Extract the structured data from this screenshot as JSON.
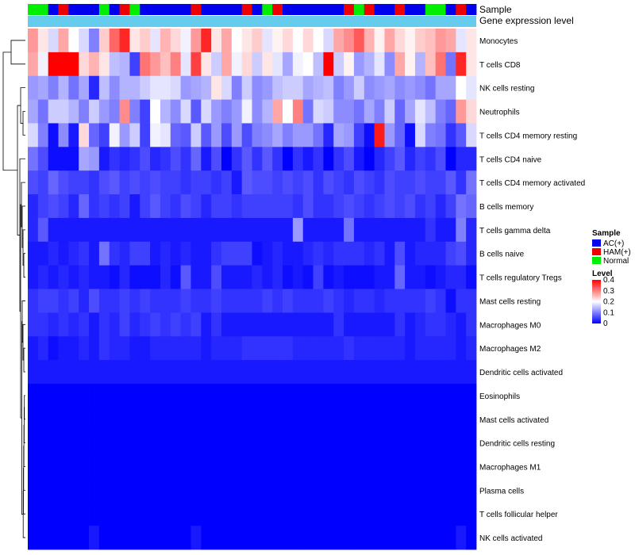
{
  "chart_data": {
    "type": "heatmap",
    "annotation_tracks": [
      "Sample",
      "Gene expression level"
    ],
    "sample_groups": [
      "AC(+)",
      "HAM(+)",
      "Normal"
    ],
    "sample_annotation": [
      2,
      2,
      0,
      1,
      0,
      0,
      0,
      2,
      0,
      1,
      2,
      0,
      0,
      0,
      0,
      0,
      1,
      0,
      0,
      0,
      0,
      1,
      0,
      2,
      1,
      0,
      0,
      0,
      0,
      0,
      0,
      1,
      2,
      1,
      0,
      0,
      1,
      0,
      0,
      2,
      2,
      0,
      1,
      0
    ],
    "row_labels": [
      "Monocytes",
      "T cells CD8",
      "NK cells resting",
      "Neutrophils",
      "T cells CD4 memory resting",
      "T cells CD4 naive",
      "T cells CD4 memory activated",
      "B cells memory",
      "T cells gamma delta",
      "B cells naive",
      "T cells regulatory  Tregs",
      "Mast cells resting",
      "Macrophages M0",
      "Macrophages M2",
      "Dendritic cells activated",
      "Eosinophils",
      "Mast cells activated",
      "Dendritic cells resting",
      "Macrophages M1",
      "Plasma cells",
      "T cells follicular helper",
      "NK cells activated"
    ],
    "n_columns": 44,
    "values": [
      [
        0.28,
        0.22,
        0.17,
        0.27,
        0.2,
        0.17,
        0.1,
        0.24,
        0.32,
        0.37,
        0.22,
        0.24,
        0.18,
        0.26,
        0.23,
        0.19,
        0.28,
        0.37,
        0.22,
        0.27,
        0.2,
        0.22,
        0.24,
        0.18,
        0.21,
        0.23,
        0.2,
        0.23,
        0.2,
        0.17,
        0.27,
        0.29,
        0.33,
        0.26,
        0.21,
        0.27,
        0.23,
        0.21,
        0.24,
        0.25,
        0.28,
        0.27,
        0.18,
        0.22
      ],
      [
        0.27,
        0.19,
        0.4,
        0.4,
        0.4,
        0.23,
        0.26,
        0.22,
        0.15,
        0.14,
        0.05,
        0.31,
        0.28,
        0.25,
        0.3,
        0.18,
        0.35,
        0.22,
        0.16,
        0.27,
        0.19,
        0.23,
        0.16,
        0.22,
        0.18,
        0.13,
        0.19,
        0.2,
        0.15,
        0.4,
        0.16,
        0.21,
        0.12,
        0.14,
        0.18,
        0.11,
        0.27,
        0.21,
        0.14,
        0.25,
        0.31,
        0.09,
        0.37,
        0.22
      ],
      [
        0.12,
        0.13,
        0.1,
        0.14,
        0.09,
        0.13,
        0.03,
        0.15,
        0.11,
        0.14,
        0.14,
        0.16,
        0.18,
        0.18,
        0.17,
        0.12,
        0.13,
        0.14,
        0.22,
        0.17,
        0.1,
        0.16,
        0.11,
        0.12,
        0.15,
        0.16,
        0.16,
        0.13,
        0.14,
        0.15,
        0.1,
        0.12,
        0.16,
        0.11,
        0.12,
        0.13,
        0.11,
        0.12,
        0.11,
        0.09,
        0.13,
        0.13,
        0.2,
        0.18
      ],
      [
        0.13,
        0.09,
        0.16,
        0.16,
        0.14,
        0.1,
        0.16,
        0.12,
        0.1,
        0.29,
        0.1,
        0.05,
        0.2,
        0.14,
        0.11,
        0.17,
        0.07,
        0.17,
        0.12,
        0.1,
        0.12,
        0.19,
        0.11,
        0.14,
        0.27,
        0.2,
        0.3,
        0.09,
        0.17,
        0.16,
        0.11,
        0.11,
        0.09,
        0.13,
        0.1,
        0.16,
        0.08,
        0.13,
        0.18,
        0.15,
        0.1,
        0.08,
        0.28,
        0.23
      ],
      [
        0.17,
        0.1,
        0.01,
        0.11,
        0.02,
        0.23,
        0.08,
        0.05,
        0.19,
        0.12,
        0.16,
        0.05,
        0.19,
        0.18,
        0.08,
        0.07,
        0.16,
        0.07,
        0.12,
        0.06,
        0.12,
        0.06,
        0.1,
        0.11,
        0.13,
        0.1,
        0.12,
        0.12,
        0.09,
        0.03,
        0.13,
        0.12,
        0.05,
        0.01,
        0.38,
        0.12,
        0.08,
        0.01,
        0.17,
        0.1,
        0.09,
        0.04,
        0.07,
        0.17
      ],
      [
        0.09,
        0.06,
        0.01,
        0.01,
        0.01,
        0.13,
        0.12,
        0.02,
        0.04,
        0.03,
        0.04,
        0.06,
        0.03,
        0.04,
        0.06,
        0.04,
        0.08,
        0.02,
        0.06,
        0.0,
        0.04,
        0.07,
        0.04,
        0.07,
        0.04,
        0.0,
        0.04,
        0.02,
        0.04,
        0.0,
        0.04,
        0.06,
        0.02,
        0.0,
        0.03,
        0.05,
        0.07,
        0.03,
        0.05,
        0.04,
        0.06,
        0.0,
        0.03,
        0.03
      ],
      [
        0.06,
        0.05,
        0.08,
        0.06,
        0.05,
        0.05,
        0.04,
        0.06,
        0.07,
        0.05,
        0.06,
        0.05,
        0.06,
        0.05,
        0.05,
        0.04,
        0.05,
        0.05,
        0.04,
        0.05,
        0.02,
        0.07,
        0.06,
        0.06,
        0.05,
        0.06,
        0.05,
        0.06,
        0.04,
        0.06,
        0.05,
        0.04,
        0.06,
        0.05,
        0.04,
        0.06,
        0.05,
        0.05,
        0.06,
        0.05,
        0.05,
        0.07,
        0.04,
        0.09
      ],
      [
        0.03,
        0.05,
        0.06,
        0.05,
        0.03,
        0.08,
        0.04,
        0.05,
        0.04,
        0.05,
        0.02,
        0.05,
        0.07,
        0.05,
        0.04,
        0.06,
        0.05,
        0.03,
        0.05,
        0.05,
        0.04,
        0.05,
        0.05,
        0.05,
        0.05,
        0.05,
        0.04,
        0.06,
        0.04,
        0.04,
        0.05,
        0.06,
        0.05,
        0.04,
        0.05,
        0.06,
        0.05,
        0.06,
        0.04,
        0.05,
        0.03,
        0.05,
        0.09,
        0.08
      ],
      [
        0.03,
        0.07,
        0.02,
        0.02,
        0.02,
        0.02,
        0.02,
        0.02,
        0.02,
        0.02,
        0.02,
        0.02,
        0.02,
        0.02,
        0.02,
        0.02,
        0.02,
        0.02,
        0.02,
        0.02,
        0.02,
        0.02,
        0.02,
        0.02,
        0.02,
        0.02,
        0.12,
        0.02,
        0.02,
        0.02,
        0.02,
        0.09,
        0.02,
        0.02,
        0.02,
        0.02,
        0.02,
        0.02,
        0.02,
        0.04,
        0.02,
        0.02,
        0.1,
        0.03
      ],
      [
        0.02,
        0.02,
        0.03,
        0.02,
        0.03,
        0.04,
        0.02,
        0.09,
        0.04,
        0.03,
        0.05,
        0.05,
        0.02,
        0.03,
        0.02,
        0.03,
        0.02,
        0.02,
        0.04,
        0.05,
        0.05,
        0.05,
        0.01,
        0.02,
        0.03,
        0.02,
        0.02,
        0.03,
        0.04,
        0.03,
        0.04,
        0.04,
        0.04,
        0.03,
        0.04,
        0.02,
        0.06,
        0.02,
        0.03,
        0.03,
        0.03,
        0.05,
        0.06,
        0.03
      ],
      [
        0.02,
        0.03,
        0.02,
        0.03,
        0.02,
        0.03,
        0.02,
        0.02,
        0.01,
        0.03,
        0.01,
        0.01,
        0.01,
        0.03,
        0.01,
        0.07,
        0.02,
        0.02,
        0.06,
        0.02,
        0.02,
        0.02,
        0.03,
        0.02,
        0.03,
        0.01,
        0.02,
        0.01,
        0.05,
        0.01,
        0.02,
        0.01,
        0.01,
        0.01,
        0.02,
        0.02,
        0.08,
        0.02,
        0.02,
        0.01,
        0.02,
        0.03,
        0.03,
        0.01
      ],
      [
        0.04,
        0.05,
        0.05,
        0.04,
        0.05,
        0.03,
        0.06,
        0.04,
        0.04,
        0.05,
        0.04,
        0.05,
        0.04,
        0.04,
        0.04,
        0.05,
        0.04,
        0.04,
        0.05,
        0.04,
        0.04,
        0.04,
        0.04,
        0.05,
        0.04,
        0.05,
        0.04,
        0.04,
        0.04,
        0.05,
        0.04,
        0.03,
        0.04,
        0.04,
        0.03,
        0.04,
        0.04,
        0.04,
        0.04,
        0.05,
        0.04,
        0.01,
        0.04,
        0.04
      ],
      [
        0.04,
        0.04,
        0.03,
        0.04,
        0.03,
        0.04,
        0.02,
        0.04,
        0.03,
        0.05,
        0.03,
        0.04,
        0.05,
        0.04,
        0.05,
        0.04,
        0.05,
        0.02,
        0.04,
        0.02,
        0.02,
        0.02,
        0.02,
        0.02,
        0.02,
        0.02,
        0.02,
        0.02,
        0.02,
        0.02,
        0.04,
        0.02,
        0.02,
        0.02,
        0.02,
        0.02,
        0.04,
        0.02,
        0.03,
        0.04,
        0.04,
        0.03,
        0.02,
        0.04
      ],
      [
        0.02,
        0.03,
        0.01,
        0.02,
        0.02,
        0.03,
        0.02,
        0.04,
        0.03,
        0.03,
        0.02,
        0.02,
        0.03,
        0.03,
        0.03,
        0.03,
        0.03,
        0.02,
        0.03,
        0.03,
        0.03,
        0.04,
        0.04,
        0.04,
        0.04,
        0.04,
        0.03,
        0.03,
        0.03,
        0.03,
        0.03,
        0.04,
        0.03,
        0.03,
        0.03,
        0.03,
        0.03,
        0.02,
        0.03,
        0.03,
        0.03,
        0.03,
        0.02,
        0.03
      ],
      [
        0.02,
        0.02,
        0.02,
        0.02,
        0.02,
        0.02,
        0.02,
        0.02,
        0.02,
        0.02,
        0.02,
        0.02,
        0.02,
        0.02,
        0.02,
        0.02,
        0.02,
        0.02,
        0.02,
        0.02,
        0.02,
        0.02,
        0.02,
        0.02,
        0.02,
        0.02,
        0.02,
        0.02,
        0.02,
        0.02,
        0.02,
        0.02,
        0.02,
        0.02,
        0.02,
        0.02,
        0.02,
        0.02,
        0.02,
        0.02,
        0.02,
        0.02,
        0.02,
        0.02
      ],
      [
        0.0,
        0.0,
        0.0,
        0.0,
        0.0,
        0.0,
        0.0,
        0.0,
        0.0,
        0.0,
        0.0,
        0.0,
        0.0,
        0.0,
        0.0,
        0.0,
        0.0,
        0.0,
        0.0,
        0.0,
        0.0,
        0.0,
        0.0,
        0.0,
        0.0,
        0.0,
        0.0,
        0.0,
        0.0,
        0.0,
        0.0,
        0.0,
        0.0,
        0.0,
        0.0,
        0.0,
        0.0,
        0.0,
        0.0,
        0.0,
        0.0,
        0.0,
        0.0,
        0.0
      ],
      [
        0.0,
        0.0,
        0.0,
        0.0,
        0.0,
        0.0,
        0.0,
        0.0,
        0.0,
        0.0,
        0.0,
        0.0,
        0.0,
        0.0,
        0.0,
        0.0,
        0.0,
        0.0,
        0.0,
        0.0,
        0.0,
        0.0,
        0.0,
        0.0,
        0.0,
        0.0,
        0.0,
        0.0,
        0.0,
        0.0,
        0.0,
        0.0,
        0.0,
        0.0,
        0.0,
        0.0,
        0.0,
        0.0,
        0.0,
        0.0,
        0.0,
        0.0,
        0.0,
        0.0
      ],
      [
        0.0,
        0.0,
        0.0,
        0.0,
        0.0,
        0.0,
        0.0,
        0.0,
        0.0,
        0.0,
        0.0,
        0.0,
        0.0,
        0.0,
        0.0,
        0.0,
        0.0,
        0.0,
        0.0,
        0.0,
        0.0,
        0.0,
        0.0,
        0.0,
        0.0,
        0.0,
        0.0,
        0.0,
        0.0,
        0.0,
        0.0,
        0.0,
        0.0,
        0.0,
        0.0,
        0.0,
        0.0,
        0.0,
        0.0,
        0.0,
        0.0,
        0.0,
        0.0,
        0.0
      ],
      [
        0.0,
        0.0,
        0.0,
        0.0,
        0.0,
        0.0,
        0.0,
        0.0,
        0.0,
        0.0,
        0.0,
        0.0,
        0.0,
        0.0,
        0.0,
        0.0,
        0.0,
        0.0,
        0.0,
        0.0,
        0.0,
        0.0,
        0.0,
        0.0,
        0.0,
        0.0,
        0.0,
        0.0,
        0.0,
        0.0,
        0.0,
        0.0,
        0.0,
        0.0,
        0.0,
        0.0,
        0.0,
        0.0,
        0.0,
        0.0,
        0.0,
        0.0,
        0.0,
        0.0
      ],
      [
        0.0,
        0.0,
        0.0,
        0.0,
        0.0,
        0.0,
        0.0,
        0.0,
        0.0,
        0.0,
        0.0,
        0.0,
        0.0,
        0.0,
        0.0,
        0.0,
        0.0,
        0.0,
        0.0,
        0.0,
        0.0,
        0.0,
        0.0,
        0.0,
        0.0,
        0.0,
        0.0,
        0.0,
        0.0,
        0.0,
        0.0,
        0.0,
        0.0,
        0.0,
        0.0,
        0.0,
        0.0,
        0.0,
        0.0,
        0.0,
        0.0,
        0.0,
        0.0,
        0.0
      ],
      [
        0.0,
        0.0,
        0.0,
        0.0,
        0.0,
        0.0,
        0.0,
        0.0,
        0.0,
        0.0,
        0.0,
        0.0,
        0.0,
        0.0,
        0.0,
        0.0,
        0.0,
        0.0,
        0.0,
        0.0,
        0.0,
        0.0,
        0.0,
        0.0,
        0.0,
        0.0,
        0.0,
        0.0,
        0.0,
        0.0,
        0.0,
        0.0,
        0.0,
        0.0,
        0.0,
        0.0,
        0.0,
        0.0,
        0.0,
        0.0,
        0.0,
        0.0,
        0.0,
        0.0
      ],
      [
        0.0,
        0.0,
        0.0,
        0.0,
        0.0,
        0.0,
        0.02,
        0.0,
        0.0,
        0.0,
        0.0,
        0.0,
        0.0,
        0.0,
        0.0,
        0.0,
        0.02,
        0.0,
        0.0,
        0.0,
        0.0,
        0.0,
        0.0,
        0.0,
        0.0,
        0.0,
        0.0,
        0.0,
        0.0,
        0.0,
        0.0,
        0.0,
        0.0,
        0.0,
        0.0,
        0.0,
        0.0,
        0.0,
        0.0,
        0.0,
        0.0,
        0.0,
        0.02,
        0.0
      ]
    ],
    "legend": {
      "sample_title": "Sample",
      "sample_entries": [
        "AC(+)",
        "HAM(+)",
        "Normal"
      ],
      "sample_colors": [
        "#0000ee",
        "#ee0000",
        "#00ee00"
      ],
      "level_title": "Level",
      "level_ticks": [
        "0.4",
        "0.3",
        "0.2",
        "0.1",
        "0"
      ],
      "level_range": [
        0,
        0.4
      ]
    },
    "expression_track_color": "#66ccee",
    "color_scale": {
      "low": "#0000ff",
      "mid": "#ffffff",
      "high": "#ff0000",
      "mid_value": 0.2
    }
  }
}
